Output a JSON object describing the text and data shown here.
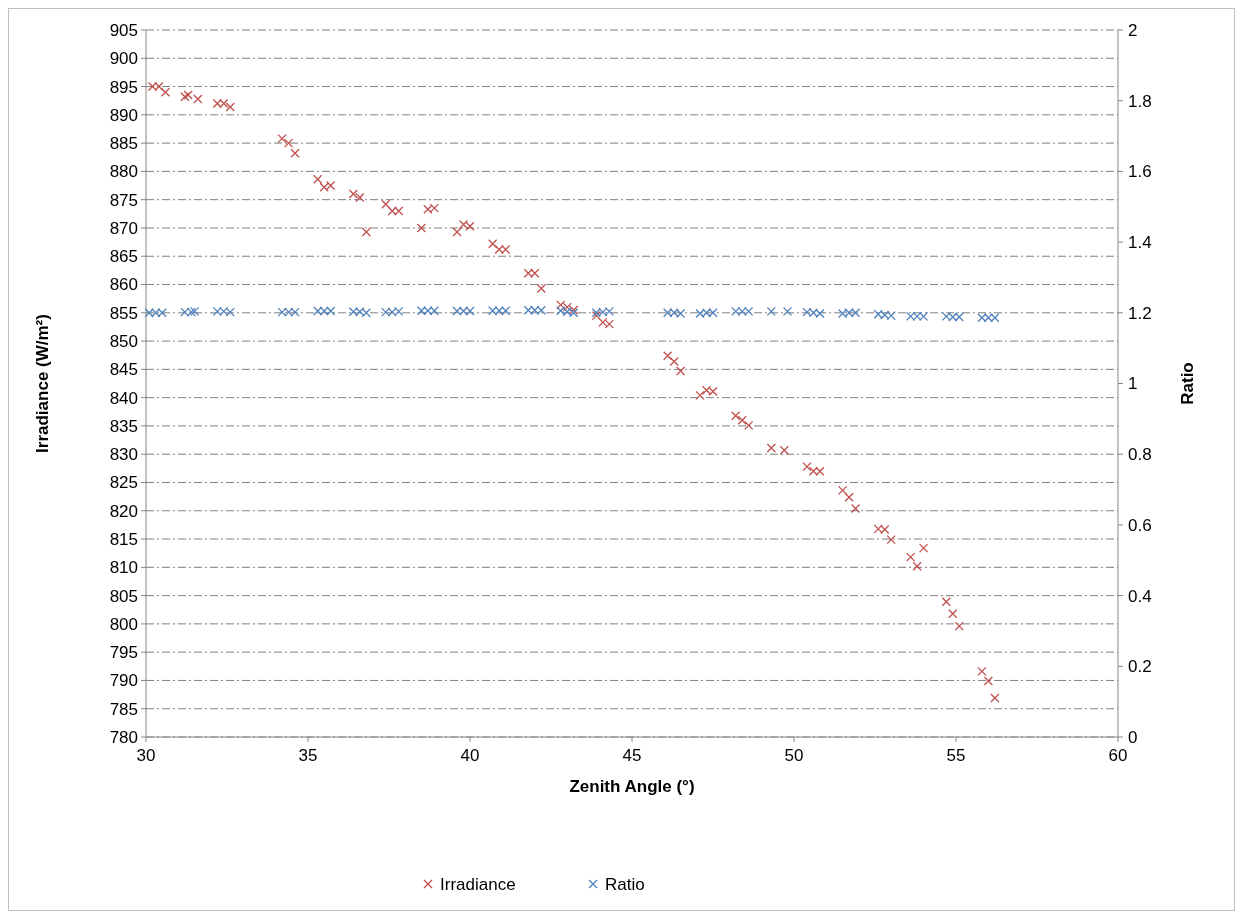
{
  "chart_data": {
    "type": "scatter",
    "xlabel": "Zenith Angle (°)",
    "ylabel": "Irradiance (W/m²)",
    "y2label": "Ratio",
    "xlim": [
      30,
      60
    ],
    "xticks": [
      30,
      35,
      40,
      45,
      50,
      55,
      60
    ],
    "ylim": [
      780,
      905
    ],
    "yticks": [
      780,
      785,
      790,
      795,
      800,
      805,
      810,
      815,
      820,
      825,
      830,
      835,
      840,
      845,
      850,
      855,
      860,
      865,
      870,
      875,
      880,
      885,
      890,
      895,
      900,
      905
    ],
    "y2lim": [
      0,
      2
    ],
    "y2ticks": [
      0,
      0.2,
      0.4,
      0.6,
      0.8,
      1,
      1.2,
      1.4,
      1.6,
      1.8,
      2
    ],
    "grid": "y",
    "legend": "bottom",
    "marker": "cross",
    "series": [
      {
        "name": "Irradiance",
        "color": "#c0504d",
        "x": [
          30.2,
          30.4,
          30.6,
          31.2,
          31.3,
          31.6,
          32.2,
          32.4,
          32.6,
          34.2,
          34.4,
          34.6,
          35.3,
          35.5,
          35.7,
          36.4,
          36.6,
          36.8,
          37.4,
          37.6,
          37.8,
          38.5,
          38.7,
          38.9,
          39.6,
          39.8,
          40.0,
          40.7,
          40.9,
          41.1,
          41.8,
          42.0,
          42.2,
          42.8,
          43.0,
          43.2,
          43.9,
          44.1,
          44.3,
          46.1,
          46.3,
          46.5,
          47.1,
          47.3,
          47.5,
          48.2,
          48.4,
          48.6,
          49.3,
          49.7,
          50.4,
          50.6,
          50.8,
          51.5,
          51.7,
          51.9,
          52.6,
          52.8,
          53.0,
          53.6,
          53.8,
          54.0,
          54.7,
          54.9,
          55.1,
          55.8,
          56.0,
          56.2
        ],
        "values": [
          895,
          895,
          894,
          893.2,
          893.5,
          892.8,
          892,
          892,
          891.4,
          885.8,
          885,
          883.2,
          878.6,
          877.2,
          877.5,
          876,
          875.4,
          869.3,
          874.2,
          873,
          873,
          870,
          873.3,
          873.5,
          869.3,
          870.6,
          870.3,
          867.2,
          866.2,
          866.2,
          862,
          862,
          859.3,
          856.4,
          856,
          855.5,
          854.5,
          853.3,
          853,
          847.4,
          846.4,
          844.7,
          840.4,
          841.3,
          841.1,
          836.8,
          836,
          835.1,
          831.1,
          830.7,
          827.8,
          827,
          827,
          823.6,
          822.4,
          820.4,
          816.8,
          816.7,
          814.9,
          811.8,
          810.2,
          813.4,
          803.9,
          801.8,
          799.6,
          791.6,
          789.9,
          786.9
        ]
      },
      {
        "name": "Ratio",
        "color": "#4f81bd",
        "axis": "y2",
        "x": [
          30.1,
          30.3,
          30.5,
          31.2,
          31.4,
          31.5,
          32.2,
          32.4,
          32.6,
          34.2,
          34.4,
          34.6,
          35.3,
          35.5,
          35.7,
          36.4,
          36.6,
          36.8,
          37.4,
          37.6,
          37.8,
          38.5,
          38.7,
          38.9,
          39.6,
          39.8,
          40.0,
          40.7,
          40.9,
          41.1,
          41.8,
          42.0,
          42.2,
          42.8,
          43.0,
          43.2,
          43.9,
          44.1,
          44.3,
          46.1,
          46.3,
          46.5,
          47.1,
          47.3,
          47.5,
          48.2,
          48.4,
          48.6,
          49.3,
          49.8,
          50.4,
          50.6,
          50.8,
          51.5,
          51.7,
          51.9,
          52.6,
          52.8,
          53.0,
          53.6,
          53.8,
          54.0,
          54.7,
          54.9,
          55.1,
          55.8,
          56.0,
          56.2
        ],
        "values": [
          1.2,
          1.2,
          1.2,
          1.202,
          1.202,
          1.204,
          1.204,
          1.204,
          1.202,
          1.202,
          1.202,
          1.202,
          1.205,
          1.205,
          1.205,
          1.203,
          1.203,
          1.2,
          1.202,
          1.202,
          1.204,
          1.206,
          1.206,
          1.206,
          1.205,
          1.205,
          1.205,
          1.206,
          1.206,
          1.206,
          1.207,
          1.207,
          1.207,
          1.206,
          1.203,
          1.2,
          1.2,
          1.202,
          1.204,
          1.2,
          1.2,
          1.198,
          1.198,
          1.2,
          1.2,
          1.204,
          1.204,
          1.204,
          1.204,
          1.204,
          1.202,
          1.2,
          1.198,
          1.198,
          1.2,
          1.2,
          1.196,
          1.194,
          1.192,
          1.19,
          1.19,
          1.19,
          1.19,
          1.188,
          1.188,
          1.186,
          1.186,
          1.186
        ]
      }
    ]
  }
}
